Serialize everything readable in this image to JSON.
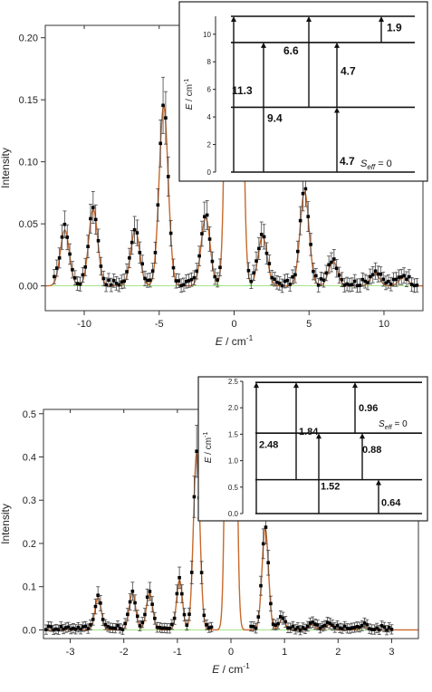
{
  "colors": {
    "fit": "#c8692d",
    "components": "#9be07a",
    "data": "#000000",
    "errorbar": "#444444"
  },
  "chart_data": [
    {
      "type": "line",
      "xlabel": "E / cm-1",
      "ylabel": "Intensity",
      "xlim": [
        -12.6,
        12.6
      ],
      "ylim": [
        -0.02,
        0.21
      ],
      "xticks": [
        -10,
        -5,
        0,
        5,
        10
      ],
      "yticks": [
        0.0,
        0.05,
        0.1,
        0.15,
        0.2
      ],
      "ytick_labels": [
        "0.00",
        "0.05",
        "0.10",
        "0.15",
        "0.20"
      ],
      "grid": false,
      "peaks": [
        {
          "x": -11.3,
          "height": 0.045,
          "width": 0.3
        },
        {
          "x": -9.4,
          "height": 0.062,
          "width": 0.3
        },
        {
          "x": -6.6,
          "height": 0.045,
          "width": 0.3
        },
        {
          "x": -4.7,
          "height": 0.145,
          "width": 0.3
        },
        {
          "x": -1.9,
          "height": 0.055,
          "width": 0.3
        },
        {
          "x": 0.0,
          "height": 1.5,
          "width": 0.3
        },
        {
          "x": 1.9,
          "height": 0.04,
          "width": 0.3
        },
        {
          "x": 4.7,
          "height": 0.076,
          "width": 0.3
        },
        {
          "x": 6.6,
          "height": 0.02,
          "width": 0.3
        },
        {
          "x": 9.4,
          "height": 0.01,
          "width": 0.3
        },
        {
          "x": 11.3,
          "height": 0.007,
          "width": 0.3
        }
      ],
      "background": 0.006,
      "data_range": [
        -12.0,
        12.2
      ],
      "gap": [
        -0.8,
        0.8
      ],
      "inset": {
        "ylabel": "E / cm-1",
        "ylim": [
          0,
          11.3
        ],
        "yticks": [
          0,
          2,
          4,
          6,
          8,
          10
        ],
        "levels": [
          0,
          4.7,
          9.4,
          11.3
        ],
        "transitions": [
          {
            "from": 0,
            "to": 4.7,
            "label": "4.7"
          },
          {
            "from": 0,
            "to": 9.4,
            "label": "9.4"
          },
          {
            "from": 0,
            "to": 11.3,
            "label": "11.3"
          },
          {
            "from": 4.7,
            "to": 9.4,
            "label": "4.7"
          },
          {
            "from": 4.7,
            "to": 11.3,
            "label": "6.6"
          },
          {
            "from": 9.4,
            "to": 11.3,
            "label": "1.9"
          }
        ],
        "state_label": "S_eff = 0"
      }
    },
    {
      "type": "line",
      "xlabel": "E / cm-1",
      "ylabel": "Intensity",
      "xlim": [
        -3.5,
        3.5
      ],
      "ylim": [
        -0.02,
        0.51
      ],
      "xticks": [
        -3,
        -2,
        -1,
        0,
        1,
        2,
        3
      ],
      "yticks": [
        0.0,
        0.1,
        0.2,
        0.3,
        0.4,
        0.5
      ],
      "ytick_labels": [
        "0.0",
        "0.1",
        "0.2",
        "0.3",
        "0.4",
        "0.5"
      ],
      "grid": false,
      "peaks": [
        {
          "x": -2.48,
          "height": 0.075,
          "width": 0.06
        },
        {
          "x": -1.84,
          "height": 0.085,
          "width": 0.06
        },
        {
          "x": -1.52,
          "height": 0.085,
          "width": 0.06
        },
        {
          "x": -0.96,
          "height": 0.115,
          "width": 0.055
        },
        {
          "x": -0.64,
          "height": 0.41,
          "width": 0.06
        },
        {
          "x": 0.0,
          "height": 3.0,
          "width": 0.06
        },
        {
          "x": 0.64,
          "height": 0.235,
          "width": 0.06
        },
        {
          "x": 0.96,
          "height": 0.025,
          "width": 0.055
        },
        {
          "x": 1.52,
          "height": 0.012,
          "width": 0.06
        },
        {
          "x": 1.84,
          "height": 0.012,
          "width": 0.06
        },
        {
          "x": 2.48,
          "height": 0.008,
          "width": 0.06
        }
      ],
      "background": 0.012,
      "data_range": [
        -3.45,
        3.0
      ],
      "gap": [
        -0.35,
        0.35
      ],
      "inset": {
        "ylabel": "E / cm-1",
        "ylim": [
          0,
          2.5
        ],
        "yticks": [
          0.0,
          0.5,
          1.0,
          1.5,
          2.0,
          2.5
        ],
        "ytick_labels": [
          "0.0",
          "0.5",
          "1.0",
          "1.5",
          "2.0",
          "2.5"
        ],
        "levels": [
          0,
          0.64,
          1.52,
          2.48
        ],
        "transitions": [
          {
            "from": 0,
            "to": 0.64,
            "label": "0.64"
          },
          {
            "from": 0,
            "to": 1.52,
            "label": "1.52"
          },
          {
            "from": 0,
            "to": 2.48,
            "label": "2.48"
          },
          {
            "from": 0.64,
            "to": 1.52,
            "label": "0.88"
          },
          {
            "from": 0.64,
            "to": 2.48,
            "label": "1.84"
          },
          {
            "from": 1.52,
            "to": 2.48,
            "label": "0.96"
          }
        ],
        "state_label": "S_eff = 0"
      }
    }
  ]
}
